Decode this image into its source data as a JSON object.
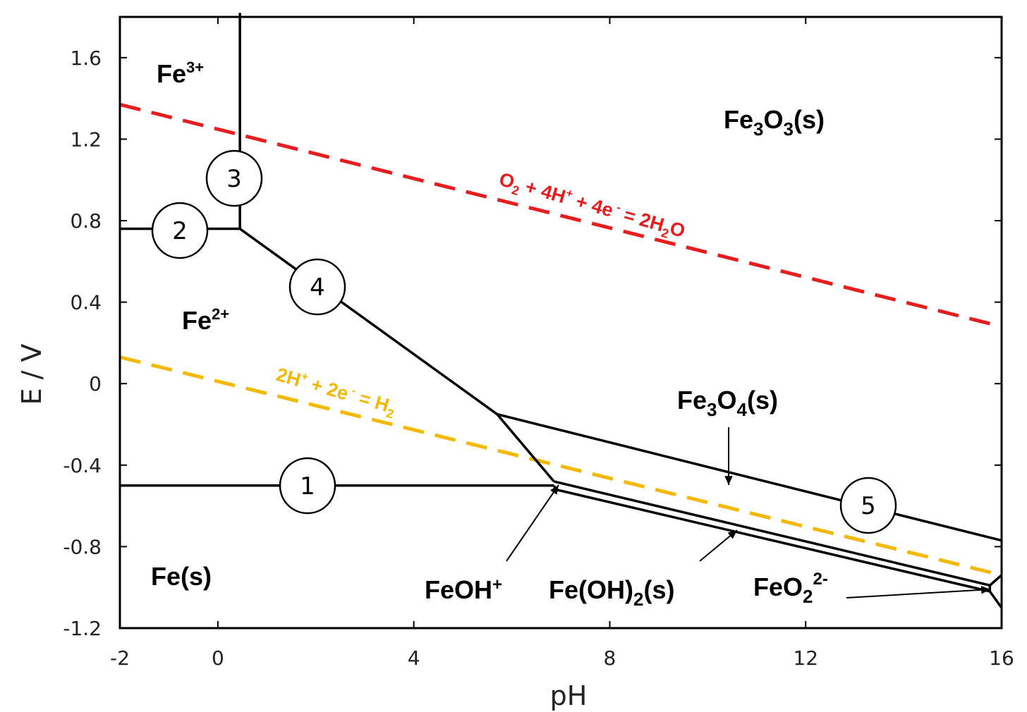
{
  "chart_data": {
    "type": "line",
    "xlabel": "pH",
    "ylabel": "E / V",
    "xlim": [
      -2,
      16
    ],
    "ylim": [
      -1.2,
      1.8
    ],
    "xticks": [
      {
        "v": -2,
        "label": "-2"
      },
      {
        "v": 0,
        "label": "0"
      },
      {
        "v": 4,
        "label": "4"
      },
      {
        "v": 8,
        "label": "8"
      },
      {
        "v": 12,
        "label": "12"
      },
      {
        "v": 16,
        "label": "16"
      }
    ],
    "yticks": [
      {
        "v": -1.2,
        "label": "-1.2"
      },
      {
        "v": -0.8,
        "label": "-0.8"
      },
      {
        "v": -0.4,
        "label": "-0.4"
      },
      {
        "v": 0,
        "label": "0"
      },
      {
        "v": 0.4,
        "label": "0.4"
      },
      {
        "v": 0.8,
        "label": "0.8"
      },
      {
        "v": 1.2,
        "label": "1.2"
      },
      {
        "v": 1.6,
        "label": "1.6"
      }
    ],
    "boundaries": [
      {
        "name": "1",
        "points": [
          [
            -2,
            -0.5
          ],
          [
            6.86,
            -0.5
          ]
        ]
      },
      {
        "name": "2",
        "points": [
          [
            -2,
            0.76
          ],
          [
            0.45,
            0.76
          ]
        ]
      },
      {
        "name": "3",
        "points": [
          [
            0.45,
            0.76
          ],
          [
            0.45,
            1.82
          ]
        ]
      },
      {
        "name": "4",
        "points": [
          [
            0.45,
            0.76
          ],
          [
            5.7,
            -0.15
          ],
          [
            6.86,
            -0.48
          ]
        ]
      },
      {
        "name": "5",
        "points": [
          [
            5.7,
            -0.15
          ],
          [
            16,
            -0.77
          ]
        ]
      },
      {
        "points": [
          [
            6.86,
            -0.48
          ],
          [
            15.76,
            -0.99
          ]
        ]
      },
      {
        "points": [
          [
            6.86,
            -0.5
          ],
          [
            6.9,
            -0.52
          ],
          [
            15.76,
            -1.02
          ]
        ]
      },
      {
        "points": [
          [
            15.76,
            -0.99
          ],
          [
            15.76,
            -1.02
          ]
        ]
      },
      {
        "points": [
          [
            15.76,
            -0.99
          ],
          [
            16,
            -0.94
          ]
        ]
      },
      {
        "points": [
          [
            15.76,
            -1.02
          ],
          [
            16,
            -1.1
          ]
        ]
      }
    ],
    "reference_lines": [
      {
        "label": "O₂ + 4H⁺ + 4e⁻ = 2H₂O",
        "color": "#e81c1c",
        "points": [
          [
            -2,
            1.37
          ],
          [
            16,
            0.28
          ]
        ]
      },
      {
        "label": "2H⁺ + 2e⁻ = H₂",
        "color": "#f5b800",
        "points": [
          [
            -2,
            0.13
          ],
          [
            16,
            -0.94
          ]
        ]
      }
    ],
    "regions": [
      "Fe³⁺",
      "Fe²⁺",
      "Fe(s)",
      "Fe₃O₃(s)",
      "Fe₃O₄(s)",
      "FeOH⁺",
      "Fe(OH)₂(s)",
      "FeO₂²⁻"
    ],
    "boundary_labels": [
      "1",
      "2",
      "3",
      "4",
      "5"
    ]
  }
}
